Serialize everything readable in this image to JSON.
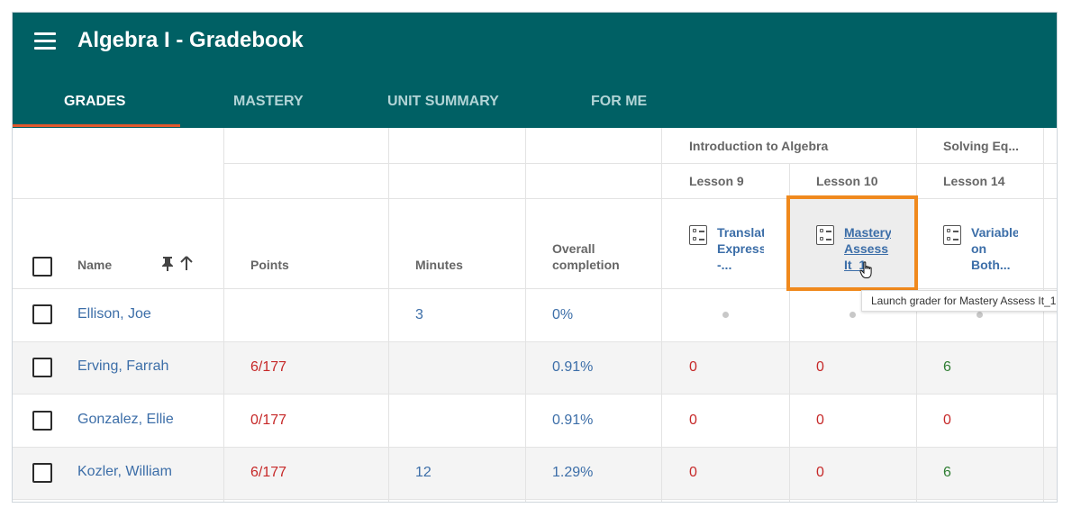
{
  "app": {
    "title": "Algebra I - Gradebook"
  },
  "tabs": [
    {
      "label": "GRADES",
      "active": true
    },
    {
      "label": "MASTERY",
      "active": false
    },
    {
      "label": "UNIT SUMMARY",
      "active": false
    },
    {
      "label": "FOR ME",
      "active": false
    }
  ],
  "columns": {
    "name": "Name",
    "points": "Points",
    "minutes": "Minutes",
    "overall": [
      "Overall",
      "completion"
    ]
  },
  "groups": [
    {
      "label": "Introduction to Algebra"
    },
    {
      "label": "Solving Eq..."
    }
  ],
  "lessons": [
    "Lesson 9",
    "Lesson 10",
    "Lesson 14"
  ],
  "assessments": [
    {
      "lines": [
        "Translat",
        "Express",
        "-..."
      ],
      "icon": "assessment-icon"
    },
    {
      "lines": [
        "Mastery",
        "Assess",
        "It_1"
      ],
      "icon": "assessment-icon"
    },
    {
      "lines": [
        "Variable",
        "on",
        "Both..."
      ],
      "icon": "assessment-icon"
    }
  ],
  "rows": [
    {
      "name": "Ellison, Joe",
      "points": "",
      "minutes": "3",
      "overall": "0%",
      "scores": [
        "•",
        "•",
        "•"
      ]
    },
    {
      "name": "Erving, Farrah",
      "points": "6/177",
      "minutes": "",
      "overall": "0.91%",
      "scores": [
        "0",
        "0",
        "6"
      ]
    },
    {
      "name": "Gonzalez, Ellie",
      "points": "0/177",
      "minutes": "",
      "overall": "0.91%",
      "scores": [
        "0",
        "0",
        "0"
      ]
    },
    {
      "name": "Kozler, William",
      "points": "6/177",
      "minutes": "12",
      "overall": "1.29%",
      "scores": [
        "0",
        "0",
        "6"
      ]
    }
  ],
  "tooltip": "Launch grader for Mastery Assess It_1",
  "colors": {
    "header": "#006064",
    "tab_underline": "#e2582e",
    "highlight": "#f0891d",
    "link": "#3c6ea8",
    "fail": "#c62828",
    "pass": "#2e7d32"
  },
  "icons": {
    "menu": "hamburger-menu-icon",
    "pin": "pin-icon",
    "sort": "sort-ascending-icon",
    "cursor": "hand-pointer-cursor-icon"
  }
}
